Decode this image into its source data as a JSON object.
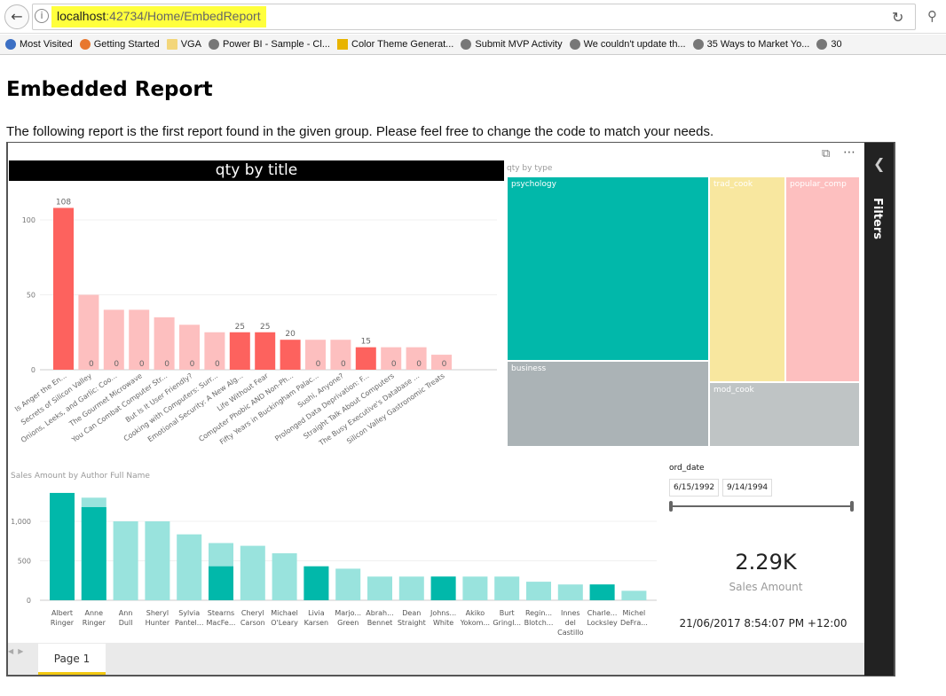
{
  "browser": {
    "url_host": "localhost",
    "url_rest": ":42734/Home/EmbedReport",
    "bookmarks": [
      "Most Visited",
      "Getting Started",
      "VGA",
      "Power BI - Sample - Cl...",
      "Color Theme Generat...",
      "Submit MVP Activity",
      "We couldn't update th...",
      "35 Ways to Market Yo...",
      "30"
    ]
  },
  "page": {
    "title": "Embedded Report",
    "intro": "The following report is the first report found in the given group. Please feel free to change the code to match your needs."
  },
  "report": {
    "filters_label": "Filters",
    "page_tab": "Page 1",
    "treemap": {
      "title": "qty by type",
      "items": [
        {
          "label": "psychology",
          "color": "#01b8aa"
        },
        {
          "label": "business",
          "color": "#abb3b6"
        },
        {
          "label": "trad_cook",
          "color": "#f8e79f"
        },
        {
          "label": "popular_comp",
          "color": "#fdbfbf"
        },
        {
          "label": "mod_cook",
          "color": "#bfc4c5"
        }
      ]
    },
    "slicer": {
      "label": "ord_date",
      "start": "6/15/1992",
      "end": "9/14/1994"
    },
    "card": {
      "value": "2.29K",
      "label": "Sales Amount"
    },
    "timestamp": "21/06/2017 8:54:07 PM +12:00"
  },
  "chart_data": [
    {
      "type": "bar",
      "title": "qty by title",
      "ylim": [
        0,
        115
      ],
      "yticks": [
        "0",
        "50",
        "100"
      ],
      "highlight_color": "#fd625e",
      "base_color": "#fdbfbf",
      "categories": [
        "Is Anger the En...",
        "Secrets of Silicon Valley",
        "Onions, Leeks, and Garlic: Coo...",
        "The Gourmet Microwave",
        "You Can Combat Computer Str...",
        "But Is It User Friendly?",
        "Cooking with Computers: Surr...",
        "Emotional Security: A New Alg...",
        "Life Without Fear",
        "Computer Phobic AND Non-Ph...",
        "Fifty Years in Buckingham Palac...",
        "Sushi, Anyone?",
        "Prolonged Data Deprivation: F...",
        "Straight Talk About Computers",
        "The Busy Executive's Database ...",
        "Silicon Valley Gastronomic Treats"
      ],
      "values": [
        108,
        50,
        40,
        40,
        35,
        30,
        25,
        25,
        25,
        20,
        20,
        20,
        15,
        15,
        15,
        10
      ],
      "highlighted": [
        108,
        0,
        0,
        0,
        0,
        0,
        0,
        25,
        25,
        20,
        0,
        0,
        15,
        0,
        0,
        0
      ],
      "data_labels": [
        "108",
        "0",
        "0",
        "0",
        "0",
        "0",
        "0",
        "25",
        "25",
        "20",
        "0",
        "0",
        "15",
        "0",
        "0",
        "0"
      ]
    },
    {
      "type": "bar",
      "title": "Sales Amount by Author Full Name",
      "ylim": [
        0,
        1450
      ],
      "yticks": [
        "0",
        "500",
        "1,000"
      ],
      "highlight_color": "#01b8aa",
      "base_color": "#99e3dd",
      "categories": [
        [
          "Albert",
          "Ringer"
        ],
        [
          "Anne",
          "Ringer"
        ],
        [
          "Ann",
          "Dull"
        ],
        [
          "Sheryl",
          "Hunter"
        ],
        [
          "Sylvia",
          "Pantel..."
        ],
        [
          "Stearns",
          "MacFe..."
        ],
        [
          "Cheryl",
          "Carson"
        ],
        [
          "Michael",
          "O'Leary"
        ],
        [
          "Livia",
          "Karsen"
        ],
        [
          "Marjo...",
          "Green"
        ],
        [
          "Abrah...",
          "Bennet"
        ],
        [
          "Dean",
          "Straight"
        ],
        [
          "Johns...",
          "White"
        ],
        [
          "Akiko",
          "Yokom..."
        ],
        [
          "Burt",
          "Gringl..."
        ],
        [
          "Regin...",
          "Blotch..."
        ],
        [
          "Innes",
          "del",
          "Castillo"
        ],
        [
          "Charle...",
          "Locksley"
        ],
        [
          "Michel",
          "DeFra..."
        ]
      ],
      "values": [
        1360,
        1300,
        1000,
        1000,
        835,
        725,
        690,
        595,
        430,
        400,
        300,
        300,
        300,
        300,
        300,
        235,
        200,
        200,
        120
      ],
      "highlighted": [
        1360,
        1180,
        0,
        0,
        0,
        430,
        0,
        0,
        430,
        0,
        0,
        0,
        300,
        0,
        0,
        0,
        0,
        200,
        0
      ]
    }
  ]
}
